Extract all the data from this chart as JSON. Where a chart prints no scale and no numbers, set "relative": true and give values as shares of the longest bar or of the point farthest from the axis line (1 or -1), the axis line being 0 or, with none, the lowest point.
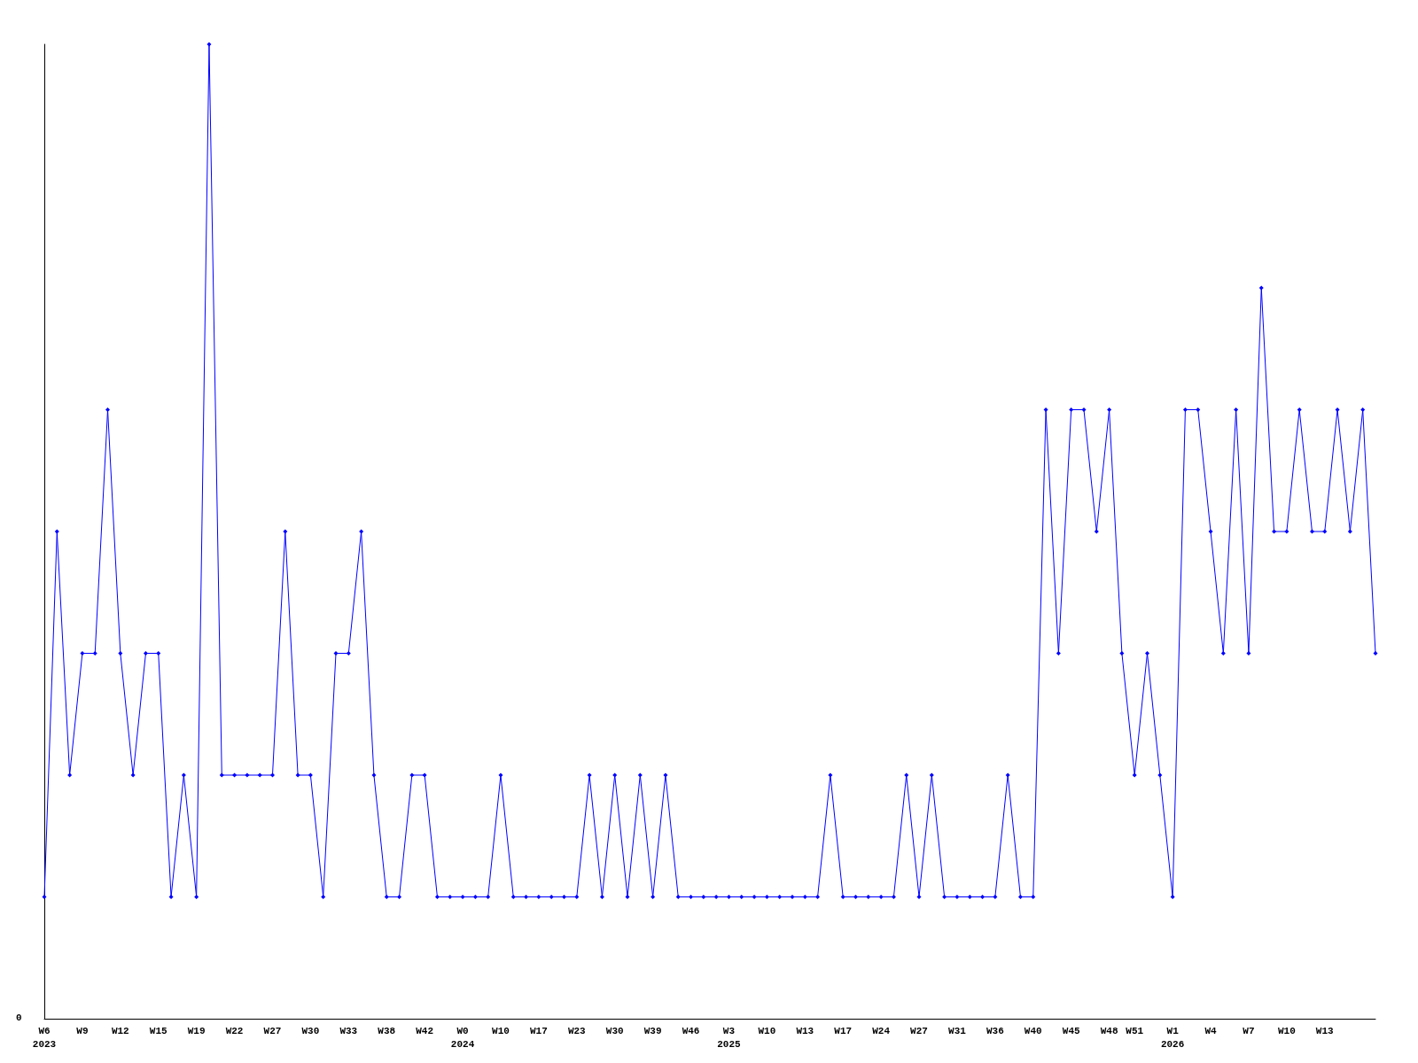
{
  "chart_data": {
    "type": "line",
    "relative": true,
    "marker": "diamond",
    "annotations": [
      "0"
    ],
    "categories": [
      "W6\n2023",
      null,
      null,
      "W9",
      null,
      null,
      "W12",
      null,
      null,
      "W15",
      null,
      null,
      "W19",
      null,
      null,
      "W22",
      null,
      null,
      "W27",
      null,
      null,
      "W30",
      null,
      null,
      "W33",
      null,
      null,
      "W38",
      null,
      null,
      "W42",
      null,
      null,
      "W0\n2024",
      null,
      null,
      "W10",
      null,
      null,
      "W17",
      null,
      null,
      "W23",
      null,
      null,
      "W30",
      null,
      null,
      "W39",
      null,
      null,
      "W46",
      null,
      null,
      "W3\n2025",
      null,
      null,
      "W10",
      null,
      null,
      "W13",
      null,
      null,
      "W17",
      null,
      null,
      "W24",
      null,
      null,
      "W27",
      null,
      null,
      "W31",
      null,
      null,
      "W36",
      null,
      null,
      "W40",
      null,
      null,
      "W45",
      null,
      null,
      "W48",
      null,
      "W51",
      null,
      null,
      "W1\n2026",
      null,
      null,
      "W4",
      null,
      null,
      "W7",
      null,
      null,
      "W10",
      null,
      null,
      "W13",
      null,
      null,
      null,
      null
    ],
    "series": [
      {
        "color": "#0000ff",
        "values": [
          0.125,
          0.5,
          0.25,
          0.375,
          0.375,
          0.625,
          0.375,
          0.25,
          0.375,
          0.375,
          0.125,
          0.25,
          0.125,
          1,
          0.25,
          0.25,
          0.25,
          0.25,
          0.25,
          0.5,
          0.25,
          0.25,
          0.125,
          0.375,
          0.375,
          0.5,
          0.25,
          0.125,
          0.125,
          0.25,
          0.25,
          0.125,
          0.125,
          0.125,
          0.125,
          0.125,
          0.25,
          0.125,
          0.125,
          0.125,
          0.125,
          0.125,
          0.125,
          0.25,
          0.125,
          0.25,
          0.125,
          0.25,
          0.125,
          0.25,
          0.125,
          0.125,
          0.125,
          0.125,
          0.125,
          0.125,
          0.125,
          0.125,
          0.125,
          0.125,
          0.125,
          0.125,
          0.25,
          0.125,
          0.125,
          0.125,
          0.125,
          0.125,
          0.25,
          0.125,
          0.25,
          0.125,
          0.125,
          0.125,
          0.125,
          0.125,
          0.25,
          0.125,
          0.125,
          0.625,
          0.375,
          0.625,
          0.625,
          0.5,
          0.625,
          0.375,
          0.25,
          0.375,
          0.25,
          0.125,
          0.625,
          0.625,
          0.5,
          0.375,
          0.625,
          0.375,
          0.75,
          0.5,
          0.5,
          0.625,
          0.5,
          0.5,
          0.625,
          0.5,
          0.625,
          0.375
        ]
      }
    ]
  }
}
